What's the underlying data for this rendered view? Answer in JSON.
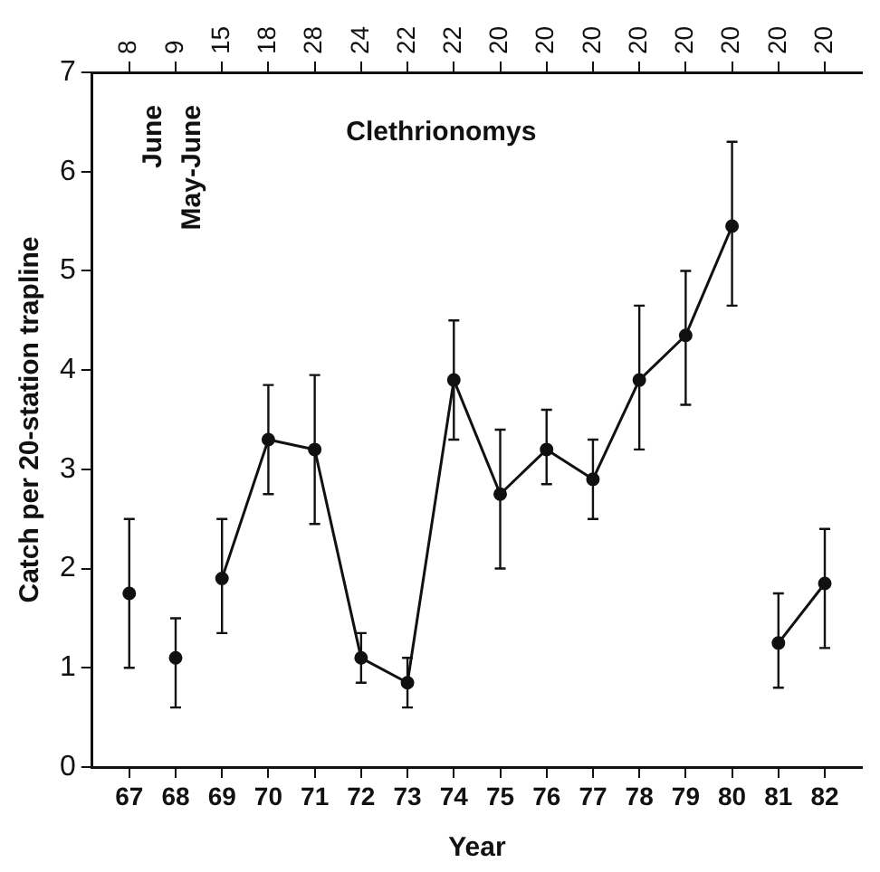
{
  "chart_data": {
    "type": "line",
    "xlabel": "Year",
    "ylabel": "Catch per 20-station trapline",
    "annotations": [
      "Clethrionomys",
      "June",
      "May-June",
      "8",
      "9",
      "15",
      "18",
      "28",
      "24",
      "22",
      "22",
      "20",
      "20",
      "20",
      "20",
      "20",
      "20",
      "20",
      "20"
    ],
    "xlim": [
      66.2,
      82.8
    ],
    "xticks": [
      67,
      68,
      69,
      70,
      71,
      72,
      73,
      74,
      75,
      76,
      77,
      78,
      79,
      80,
      81,
      82
    ],
    "ylim": [
      0,
      7
    ],
    "yticks": [
      0,
      1,
      2,
      3,
      4,
      5,
      6,
      7
    ],
    "grid": false,
    "legend": false,
    "marker": "circle",
    "line_style": "solid",
    "series": [
      {
        "color": "#111111",
        "type": "scatter",
        "x": [
          67
        ],
        "values": [
          1.75
        ],
        "errors": [
          [
            1.0,
            2.5
          ]
        ]
      },
      {
        "color": "#111111",
        "type": "scatter",
        "x": [
          68
        ],
        "values": [
          1.1
        ],
        "errors": [
          [
            0.6,
            1.5
          ]
        ]
      },
      {
        "color": "#111111",
        "x": [
          69,
          70,
          71,
          72,
          73,
          74,
          75,
          76,
          77,
          78,
          79,
          80
        ],
        "values": [
          1.9,
          3.3,
          3.2,
          1.1,
          0.85,
          3.9,
          2.75,
          3.2,
          2.9,
          3.9,
          4.35,
          5.45
        ],
        "errors": [
          [
            1.35,
            2.5
          ],
          [
            2.75,
            3.85
          ],
          [
            2.45,
            3.95
          ],
          [
            0.85,
            1.35
          ],
          [
            0.6,
            1.1
          ],
          [
            3.3,
            4.5
          ],
          [
            2.0,
            3.4
          ],
          [
            2.85,
            3.6
          ],
          [
            2.5,
            3.3
          ],
          [
            3.2,
            4.65
          ],
          [
            3.65,
            5.0
          ],
          [
            4.65,
            6.3
          ]
        ]
      },
      {
        "color": "#111111",
        "x": [
          81,
          82
        ],
        "values": [
          1.25,
          1.85
        ],
        "errors": [
          [
            0.8,
            1.75
          ],
          [
            1.2,
            2.4
          ]
        ]
      }
    ]
  }
}
